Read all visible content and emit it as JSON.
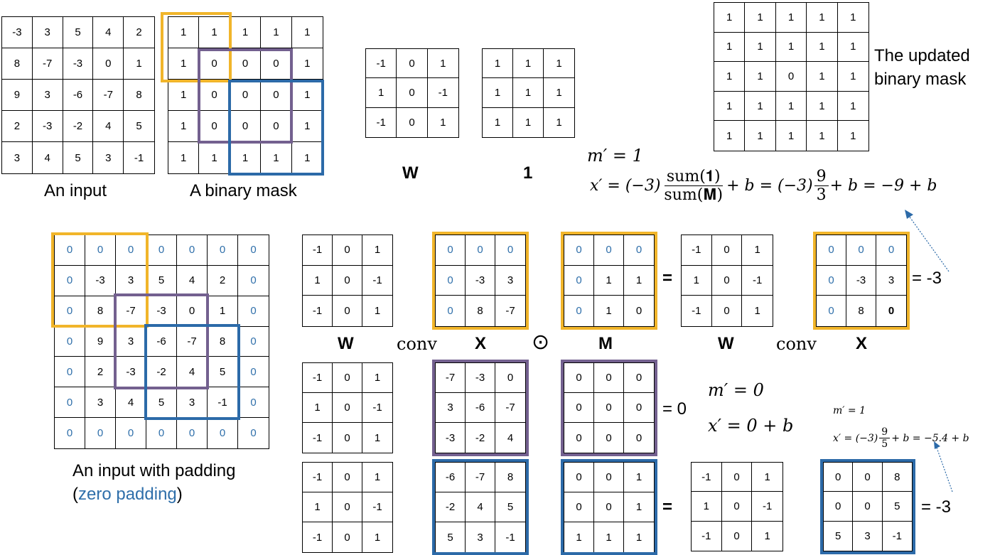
{
  "captions": {
    "input": "An input",
    "binary_mask": "A binary mask",
    "padded_input": "An input with padding",
    "zero_padding_open": "(",
    "zero_padding": "zero padding",
    "zero_padding_close": ")",
    "updated_mask": "The updated binary mask"
  },
  "labels": {
    "W": "W",
    "ones": "1",
    "conv": "conv",
    "X": "X",
    "odot": "⊙",
    "M": "M",
    "equals": "=",
    "result_top": "= -3",
    "result_mid": "= 0",
    "result_bottom": "= -3"
  },
  "math": {
    "top_mprime": "m′ = 1",
    "top_x_lhs": "x′ = (−3)",
    "top_num": "sum(𝟏)",
    "top_den": "sum(𝐌)",
    "top_mid": "+ b = (−3)",
    "top_num2": "9",
    "top_den2": "3",
    "top_rhs": "+ b = −9 + b",
    "mid_mprime": "m′ = 0",
    "mid_x": "x′ = 0 + b",
    "bot_mprime": "m′ = 1",
    "bot_x_lhs": "x′ = (−3)",
    "bot_num": "9",
    "bot_den": "5",
    "bot_rhs": "+ b = −5.4 + b"
  },
  "colors": {
    "yellow": "#f1b52a",
    "purple": "#73608f",
    "blue": "#2c6aa8",
    "padding_text": "#2f6faa"
  },
  "grids": {
    "input": [
      [
        "-3",
        "3",
        "5",
        "4",
        "2"
      ],
      [
        "8",
        "-7",
        "-3",
        "0",
        "1"
      ],
      [
        "9",
        "3",
        "-6",
        "-7",
        "8"
      ],
      [
        "2",
        "-3",
        "-2",
        "4",
        "5"
      ],
      [
        "3",
        "4",
        "5",
        "3",
        "-1"
      ]
    ],
    "mask": [
      [
        "1",
        "1",
        "1",
        "1",
        "1"
      ],
      [
        "1",
        "0",
        "0",
        "0",
        "1"
      ],
      [
        "1",
        "0",
        "0",
        "0",
        "1"
      ],
      [
        "1",
        "0",
        "0",
        "0",
        "1"
      ],
      [
        "1",
        "1",
        "1",
        "1",
        "1"
      ]
    ],
    "kernel_W": [
      [
        "-1",
        "0",
        "1"
      ],
      [
        "1",
        "0",
        "-1"
      ],
      [
        "-1",
        "0",
        "1"
      ]
    ],
    "kernel_ones": [
      [
        "1",
        "1",
        "1"
      ],
      [
        "1",
        "1",
        "1"
      ],
      [
        "1",
        "1",
        "1"
      ]
    ],
    "updated_mask": [
      [
        "1",
        "1",
        "1",
        "1",
        "1"
      ],
      [
        "1",
        "1",
        "1",
        "1",
        "1"
      ],
      [
        "1",
        "1",
        "0",
        "1",
        "1"
      ],
      [
        "1",
        "1",
        "1",
        "1",
        "1"
      ],
      [
        "1",
        "1",
        "1",
        "1",
        "1"
      ]
    ],
    "padded": [
      [
        "0",
        "0",
        "0",
        "0",
        "0",
        "0",
        "0"
      ],
      [
        "0",
        "-3",
        "3",
        "5",
        "4",
        "2",
        "0"
      ],
      [
        "0",
        "8",
        "-7",
        "-3",
        "0",
        "1",
        "0"
      ],
      [
        "0",
        "9",
        "3",
        "-6",
        "-7",
        "8",
        "0"
      ],
      [
        "0",
        "2",
        "-3",
        "-2",
        "4",
        "5",
        "0"
      ],
      [
        "0",
        "3",
        "4",
        "5",
        "3",
        "-1",
        "0"
      ],
      [
        "0",
        "0",
        "0",
        "0",
        "0",
        "0",
        "0"
      ]
    ],
    "r1_X": [
      [
        "0",
        "0",
        "0"
      ],
      [
        "0",
        "-3",
        "3"
      ],
      [
        "0",
        "8",
        "-7"
      ]
    ],
    "r1_M": [
      [
        "0",
        "0",
        "0"
      ],
      [
        "0",
        "1",
        "1"
      ],
      [
        "0",
        "1",
        "0"
      ]
    ],
    "r1_XM": [
      [
        "0",
        "0",
        "0"
      ],
      [
        "0",
        "-3",
        "3"
      ],
      [
        "0",
        "8",
        "0"
      ]
    ],
    "r2_X": [
      [
        "-7",
        "-3",
        "0"
      ],
      [
        "3",
        "-6",
        "-7"
      ],
      [
        "-3",
        "-2",
        "4"
      ]
    ],
    "r2_M": [
      [
        "0",
        "0",
        "0"
      ],
      [
        "0",
        "0",
        "0"
      ],
      [
        "0",
        "0",
        "0"
      ]
    ],
    "r3_X": [
      [
        "-6",
        "-7",
        "8"
      ],
      [
        "-2",
        "4",
        "5"
      ],
      [
        "5",
        "3",
        "-1"
      ]
    ],
    "r3_M": [
      [
        "0",
        "0",
        "1"
      ],
      [
        "0",
        "0",
        "1"
      ],
      [
        "1",
        "1",
        "1"
      ]
    ],
    "r3_XM": [
      [
        "0",
        "0",
        "8"
      ],
      [
        "0",
        "0",
        "5"
      ],
      [
        "5",
        "3",
        "-1"
      ]
    ]
  }
}
